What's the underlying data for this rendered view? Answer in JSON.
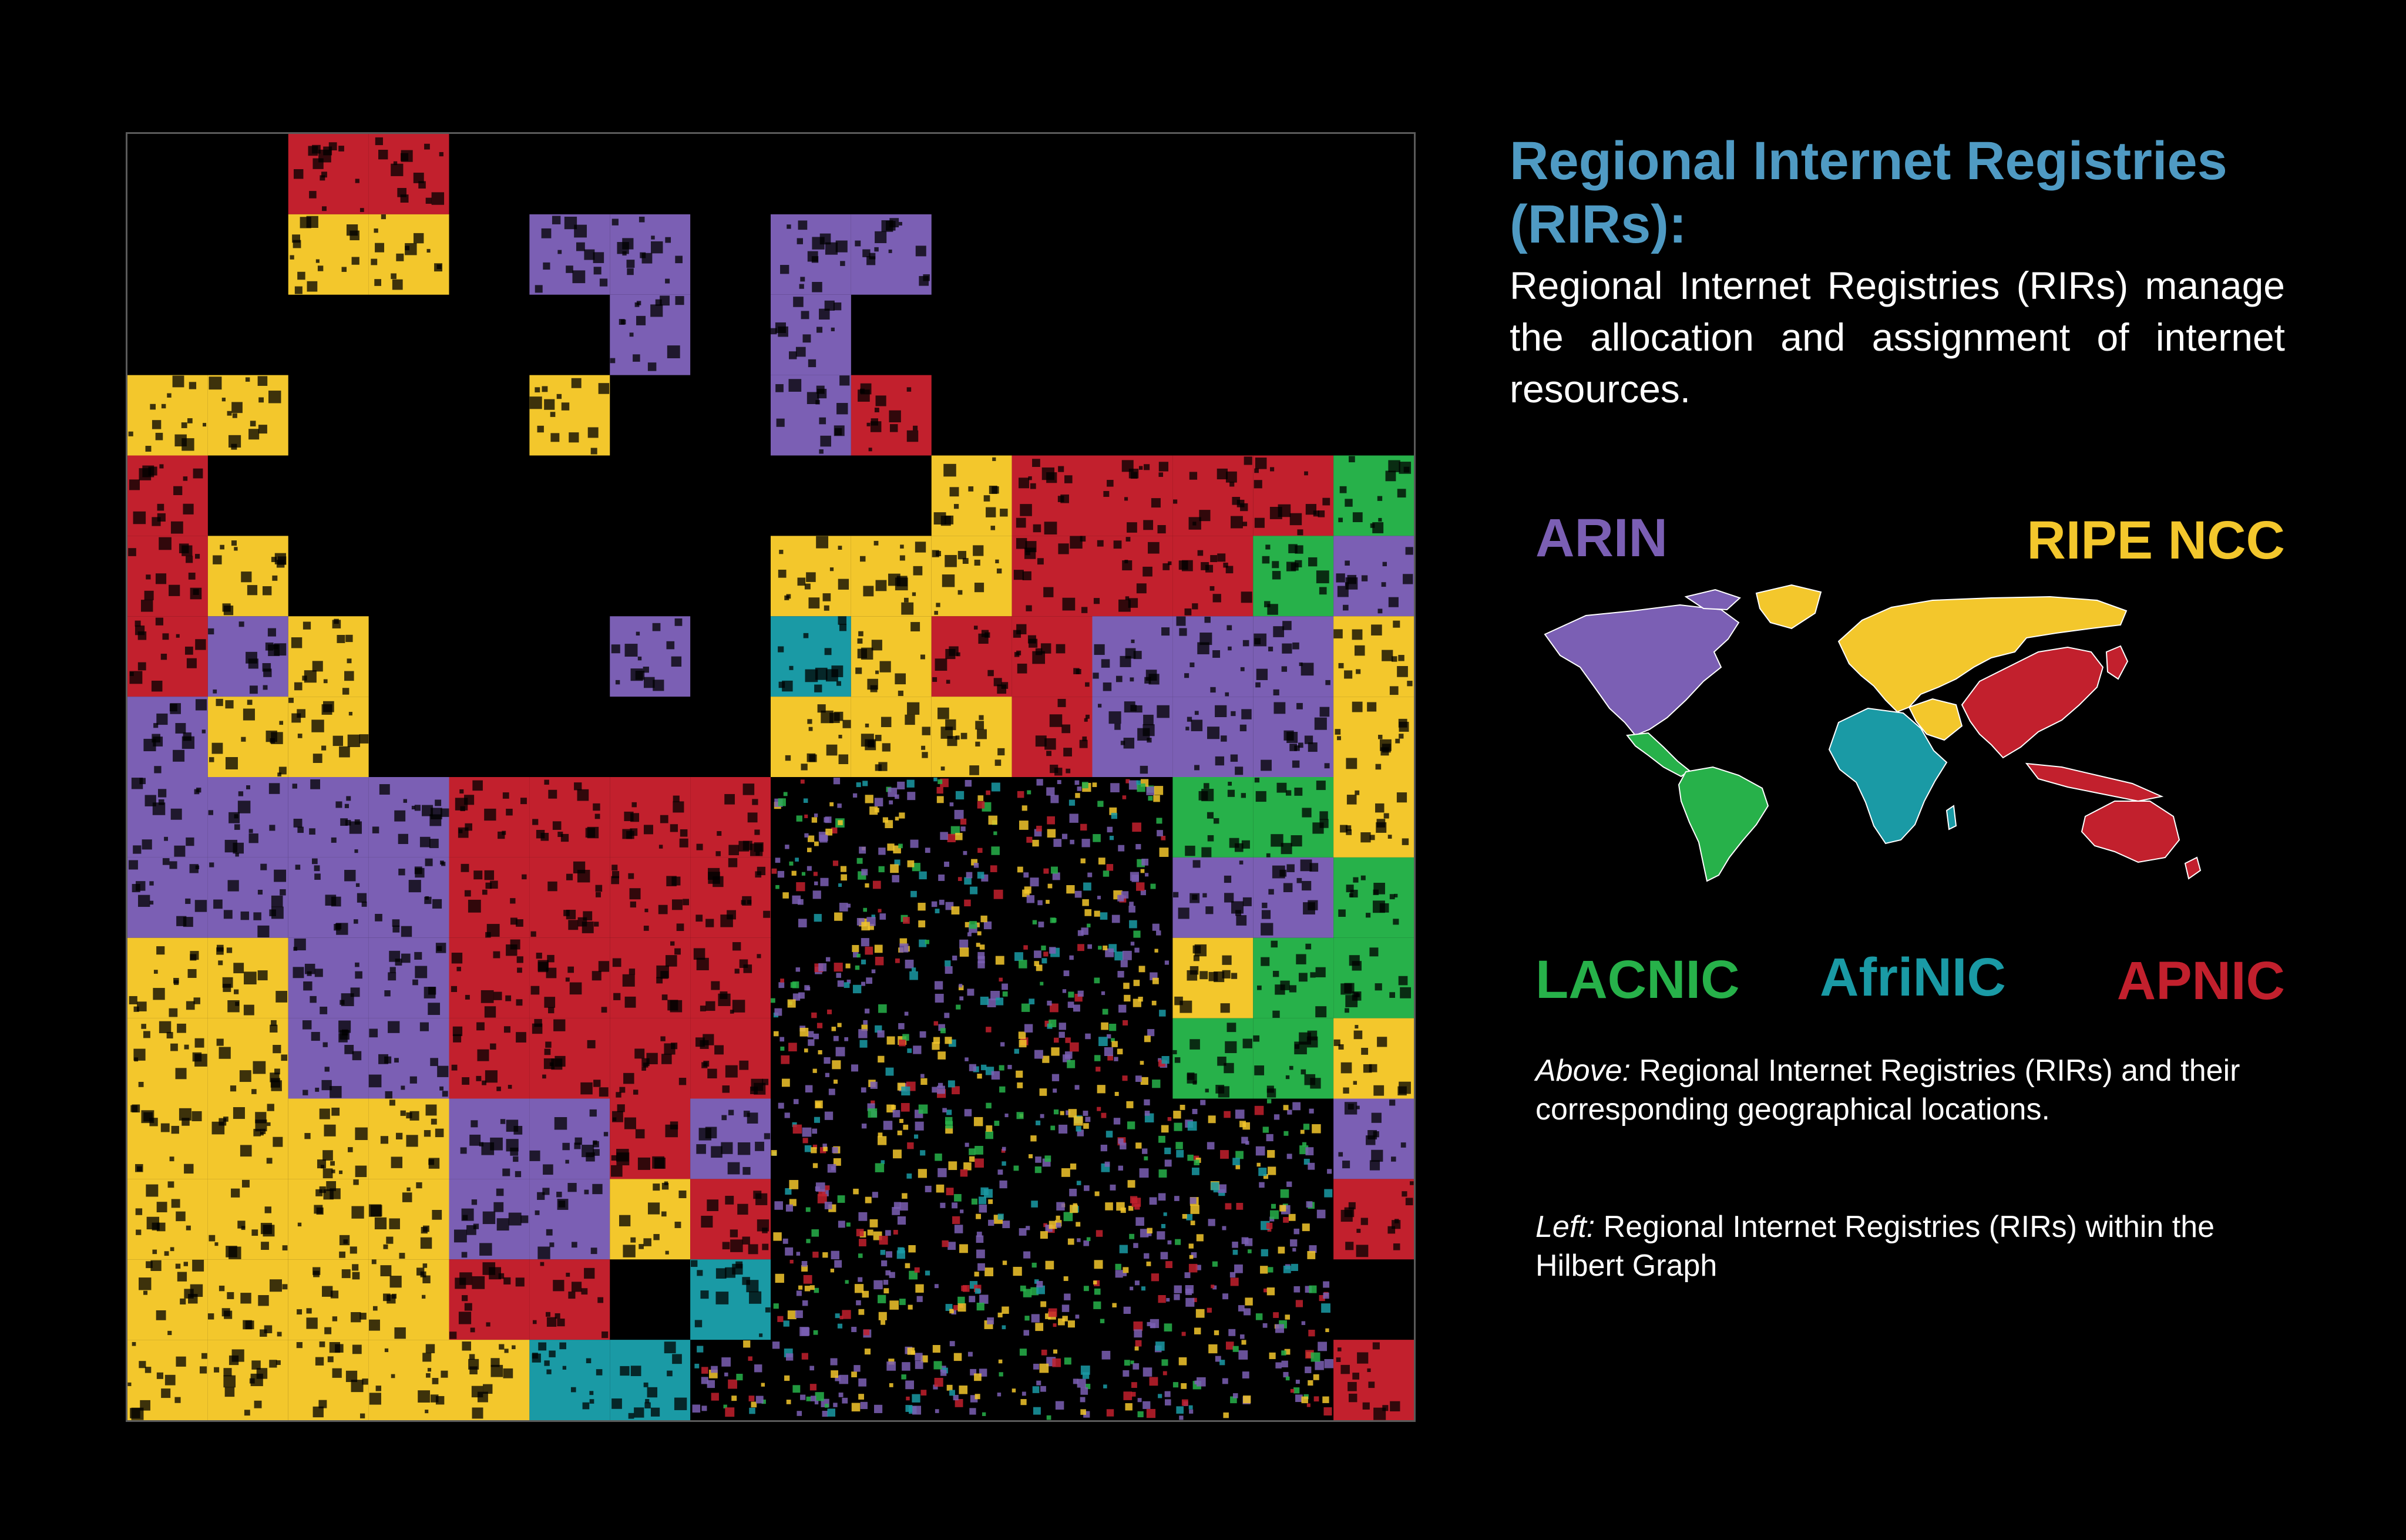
{
  "title": "Regional Internet Registries (RIRs):",
  "intro": "Regional Internet Registries (RIRs) manage the allocation and assignment of internet resources.",
  "rirs": [
    {
      "name": "ARIN",
      "color": "#7b5fb4"
    },
    {
      "name": "RIPE NCC",
      "color": "#f3c72c"
    },
    {
      "name": "LACNIC",
      "color": "#27b14a"
    },
    {
      "name": "AfriNIC",
      "color": "#1a9aa5"
    },
    {
      "name": "APNIC",
      "color": "#c2202d"
    }
  ],
  "captions": {
    "above_lead": "Above:",
    "above_text": "Regional Internet Registries (RIRs) and their corresponding geographical locations.",
    "left_lead": "Left:",
    "left_text": "Regional Internet Registries (RIRs) within the Hilbert Graph"
  },
  "icons": {
    "hilbert": "hilbert-graph-pattern",
    "map": "world-map-icon"
  }
}
